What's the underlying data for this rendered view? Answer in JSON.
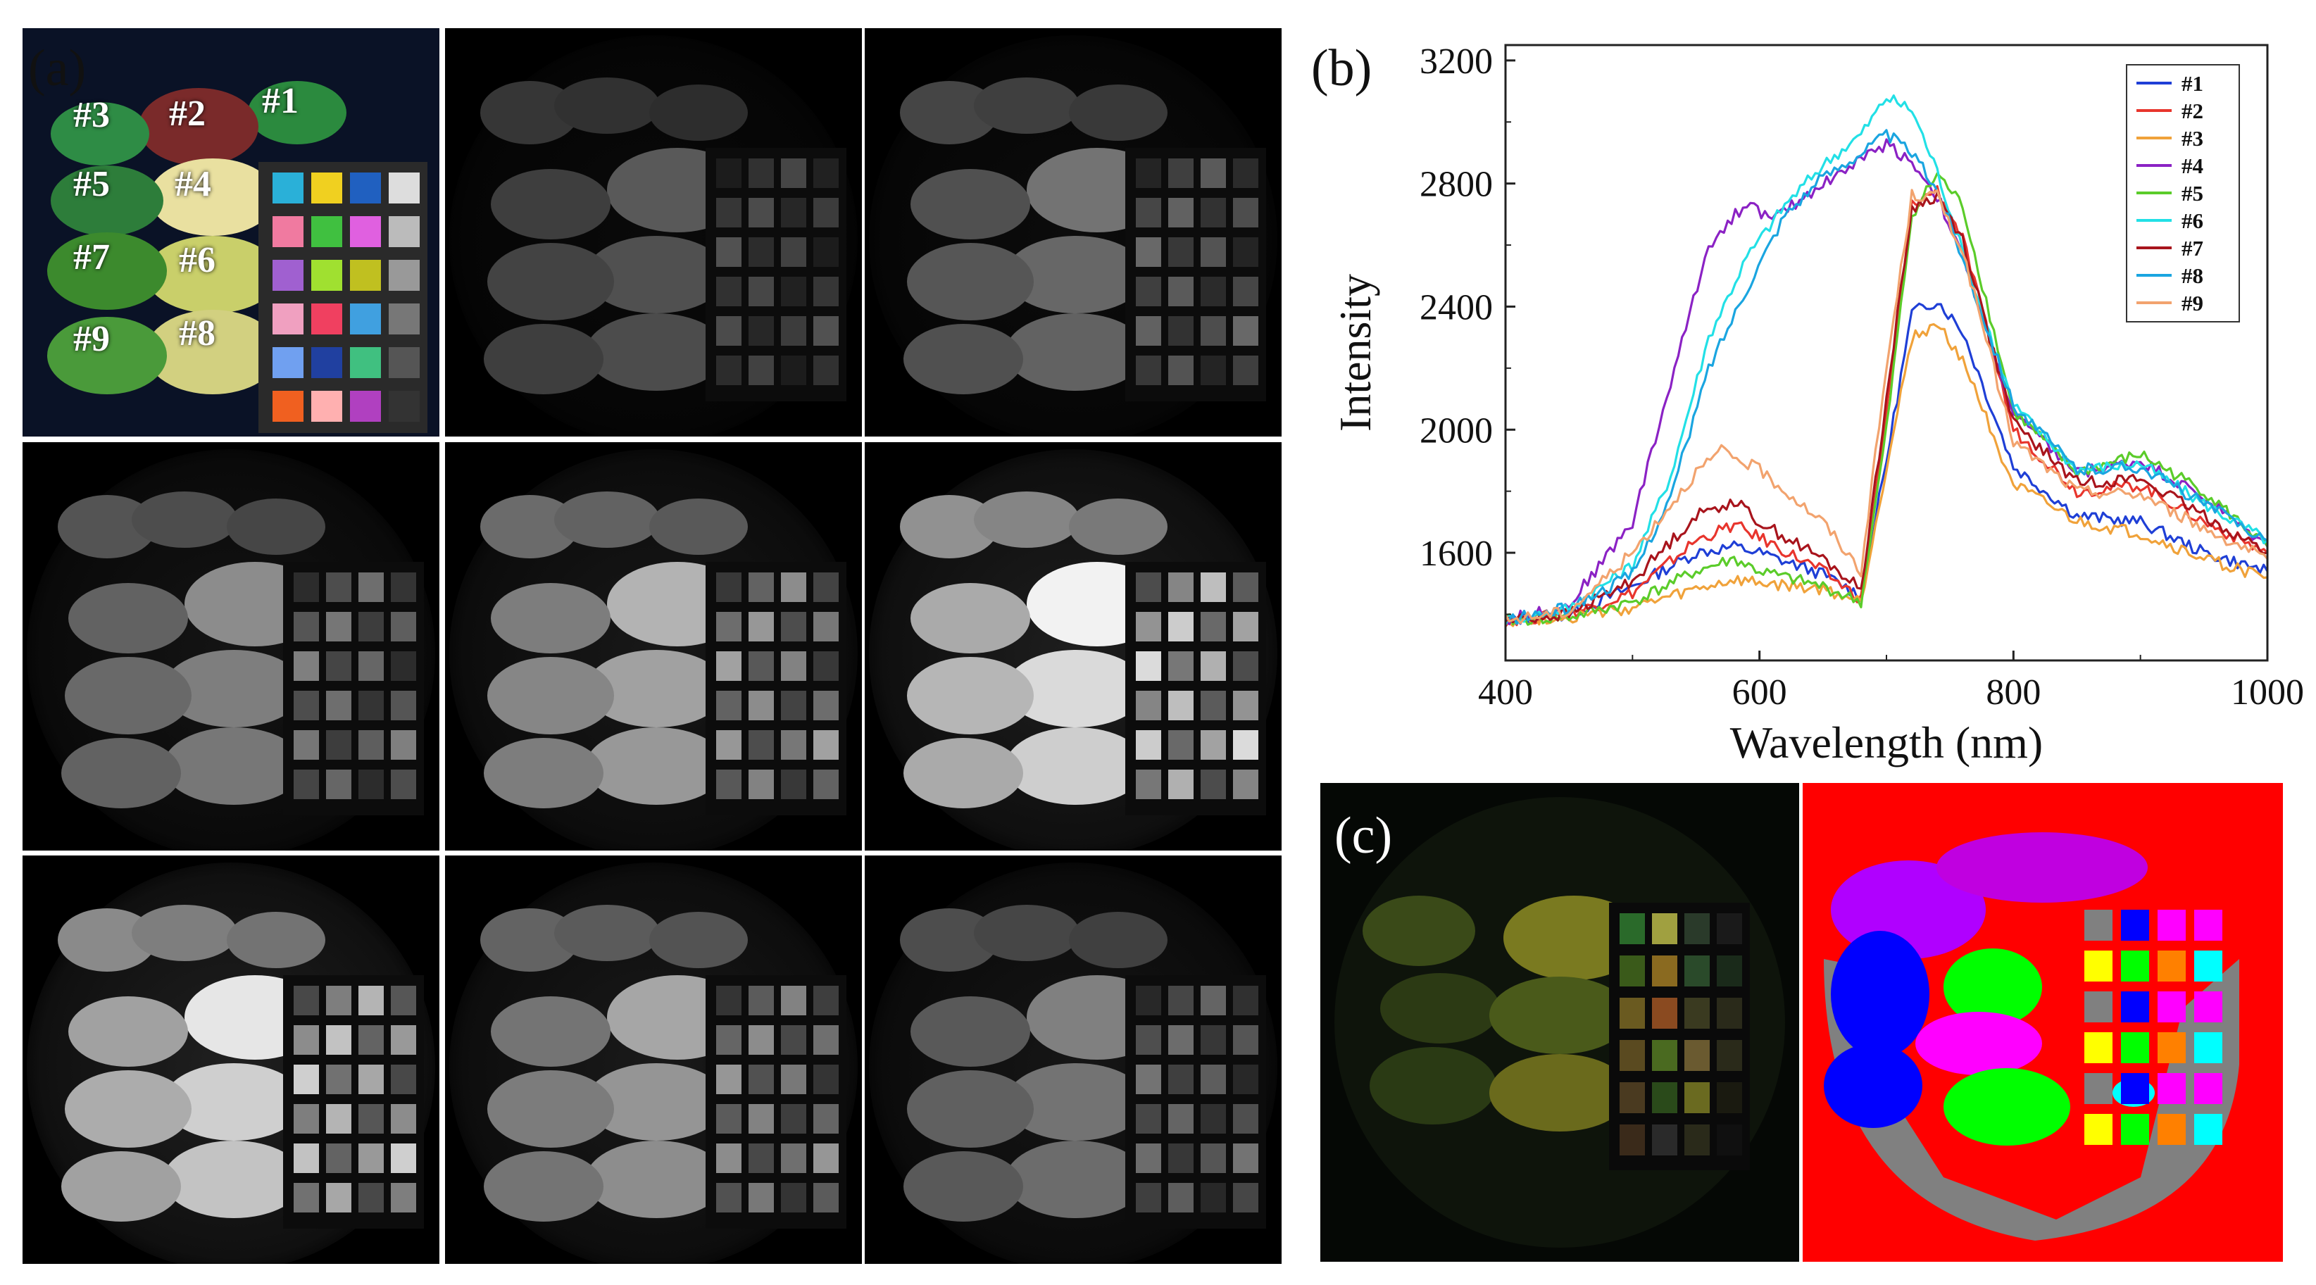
{
  "panels": {
    "a_label": "(a)",
    "b_label": "(b)",
    "c_label": "(c)",
    "leaf_labels": [
      "#1",
      "#2",
      "#3",
      "#4",
      "#5",
      "#6",
      "#7",
      "#8",
      "#9"
    ]
  },
  "colors": {
    "background": "#ffffff",
    "tile_background": "#000000",
    "classification_background": "#ff0000"
  },
  "chart_data": {
    "type": "line",
    "title": "",
    "xlabel": "Wavelength (nm)",
    "ylabel": "Intensity",
    "xlim": [
      400,
      1000
    ],
    "ylim": [
      1250,
      3250
    ],
    "xticks": [
      400,
      600,
      800,
      1000
    ],
    "yticks": [
      1600,
      2000,
      2400,
      2800,
      3200
    ],
    "legend_position": "top-right",
    "series": [
      {
        "name": "#1",
        "color": "#1f3fd6",
        "x": [
          400,
          450,
          500,
          550,
          580,
          600,
          650,
          680,
          700,
          720,
          740,
          760,
          800,
          850,
          900,
          950,
          1000
        ],
        "y": [
          1380,
          1400,
          1490,
          1600,
          1620,
          1600,
          1530,
          1460,
          1900,
          2380,
          2420,
          2320,
          1880,
          1720,
          1700,
          1600,
          1540
        ]
      },
      {
        "name": "#2",
        "color": "#e8352d",
        "x": [
          400,
          450,
          500,
          550,
          580,
          600,
          650,
          680,
          700,
          720,
          740,
          760,
          800,
          850,
          900,
          950,
          1000
        ],
        "y": [
          1380,
          1400,
          1470,
          1640,
          1690,
          1650,
          1540,
          1450,
          2050,
          2730,
          2780,
          2620,
          2000,
          1800,
          1820,
          1700,
          1600
        ]
      },
      {
        "name": "#3",
        "color": "#f0a23a",
        "x": [
          400,
          450,
          500,
          550,
          580,
          600,
          650,
          680,
          700,
          720,
          740,
          760,
          800,
          850,
          900,
          950,
          1000
        ],
        "y": [
          1380,
          1390,
          1420,
          1480,
          1510,
          1500,
          1480,
          1440,
          1880,
          2300,
          2340,
          2230,
          1820,
          1700,
          1660,
          1580,
          1520
        ]
      },
      {
        "name": "#4",
        "color": "#8b22c4",
        "x": [
          400,
          450,
          500,
          530,
          560,
          590,
          610,
          650,
          700,
          720,
          740,
          760,
          800,
          850,
          900,
          950,
          1000
        ],
        "y": [
          1380,
          1430,
          1700,
          2150,
          2600,
          2740,
          2680,
          2800,
          2930,
          2870,
          2760,
          2560,
          2050,
          1860,
          1900,
          1780,
          1620
        ]
      },
      {
        "name": "#5",
        "color": "#5bcc2a",
        "x": [
          400,
          450,
          500,
          550,
          580,
          600,
          650,
          680,
          700,
          720,
          740,
          760,
          800,
          850,
          900,
          950,
          1000
        ],
        "y": [
          1380,
          1390,
          1440,
          1540,
          1580,
          1540,
          1490,
          1440,
          2000,
          2700,
          2830,
          2730,
          2060,
          1860,
          1920,
          1800,
          1620
        ]
      },
      {
        "name": "#6",
        "color": "#22e0e6",
        "x": [
          400,
          450,
          500,
          530,
          560,
          590,
          620,
          650,
          680,
          700,
          720,
          740,
          760,
          800,
          850,
          900,
          950,
          1000
        ],
        "y": [
          1380,
          1420,
          1560,
          1850,
          2300,
          2560,
          2730,
          2860,
          2960,
          3080,
          3040,
          2840,
          2580,
          2080,
          1870,
          1890,
          1760,
          1640
        ]
      },
      {
        "name": "#7",
        "color": "#a8141c",
        "x": [
          400,
          450,
          500,
          550,
          580,
          600,
          650,
          680,
          700,
          720,
          740,
          760,
          800,
          850,
          900,
          950,
          1000
        ],
        "y": [
          1380,
          1400,
          1510,
          1720,
          1770,
          1700,
          1580,
          1480,
          2100,
          2720,
          2760,
          2620,
          2020,
          1830,
          1840,
          1720,
          1600
        ]
      },
      {
        "name": "#8",
        "color": "#1aa5e0",
        "x": [
          400,
          450,
          500,
          530,
          560,
          590,
          620,
          650,
          680,
          700,
          720,
          740,
          760,
          800,
          850,
          900,
          950,
          1000
        ],
        "y": [
          1380,
          1420,
          1530,
          1780,
          2200,
          2460,
          2700,
          2820,
          2900,
          2960,
          2900,
          2780,
          2560,
          2080,
          1870,
          1880,
          1760,
          1640
        ]
      },
      {
        "name": "#9",
        "color": "#f2a36e",
        "x": [
          400,
          450,
          500,
          550,
          570,
          600,
          650,
          680,
          700,
          720,
          740,
          760,
          800,
          850,
          900,
          950,
          1000
        ],
        "y": [
          1380,
          1410,
          1600,
          1860,
          1930,
          1870,
          1700,
          1540,
          2200,
          2760,
          2760,
          2580,
          1960,
          1800,
          1790,
          1680,
          1580
        ]
      }
    ]
  }
}
